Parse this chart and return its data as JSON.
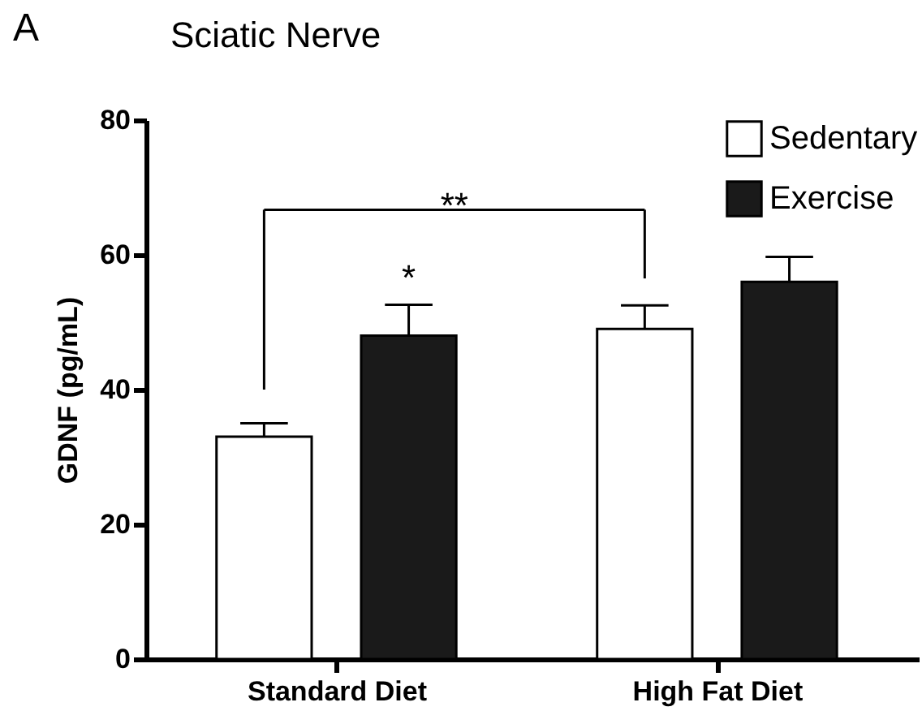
{
  "chart_data": {
    "type": "bar",
    "title": "Sciatic Nerve",
    "ylabel": "GDNF (pg/mL)",
    "categories": [
      "Standard Diet",
      "High Fat Diet"
    ],
    "series": [
      {
        "name": "Sedentary",
        "color": "#ffffff",
        "values": [
          33,
          49
        ],
        "errors": [
          [
            33,
            35
          ],
          [
            49,
            52.5
          ]
        ]
      },
      {
        "name": "Exercise",
        "color": "#1a1a1a",
        "values": [
          48,
          56
        ],
        "errors": [
          [
            48,
            52.6
          ],
          [
            56,
            59.7
          ]
        ]
      }
    ],
    "ylim": [
      0,
      80
    ],
    "yticks": [
      0,
      20,
      40,
      60,
      80
    ],
    "grid": false,
    "legend": "top right",
    "annotations": [
      "A",
      "*",
      "**"
    ]
  }
}
